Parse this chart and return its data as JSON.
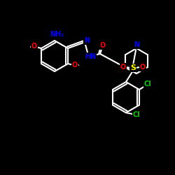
{
  "bg_color": "#000000",
  "line_color": "#ffffff",
  "bond_width": 1.5,
  "atom_colors": {
    "N": "#0000ff",
    "O": "#ff0000",
    "S": "#ffff00",
    "Cl": "#00cc00",
    "C": "#ffffff",
    "H": "#ffffff"
  },
  "font_size_label": 7,
  "fig_width": 2.5,
  "fig_height": 2.5,
  "dpi": 100
}
